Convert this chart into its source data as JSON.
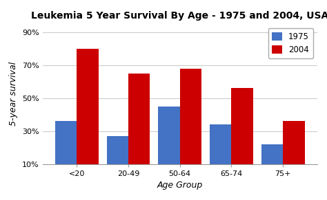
{
  "title": "Leukemia 5 Year Survival By Age - 1975 and 2004, USA",
  "xlabel": "Age Group",
  "ylabel": "5-year survival",
  "categories": [
    "<20",
    "20-49",
    "50-64",
    "65-74",
    "75+"
  ],
  "values_1975": [
    36,
    27,
    45,
    34,
    22
  ],
  "values_2004": [
    80,
    65,
    68,
    56,
    36
  ],
  "color_1975": "#4472C4",
  "color_2004": "#CC0000",
  "legend_labels": [
    "1975",
    "2004"
  ],
  "yticks": [
    10,
    30,
    50,
    70,
    90
  ],
  "ytick_labels": [
    "10%",
    "30%",
    "50%",
    "70%",
    "90%"
  ],
  "ylim": [
    10,
    95
  ],
  "background_color": "#FFFFFF",
  "grid_color": "#CCCCCC",
  "bar_width": 0.42,
  "title_fontsize": 10,
  "axis_label_fontsize": 9,
  "tick_fontsize": 8
}
